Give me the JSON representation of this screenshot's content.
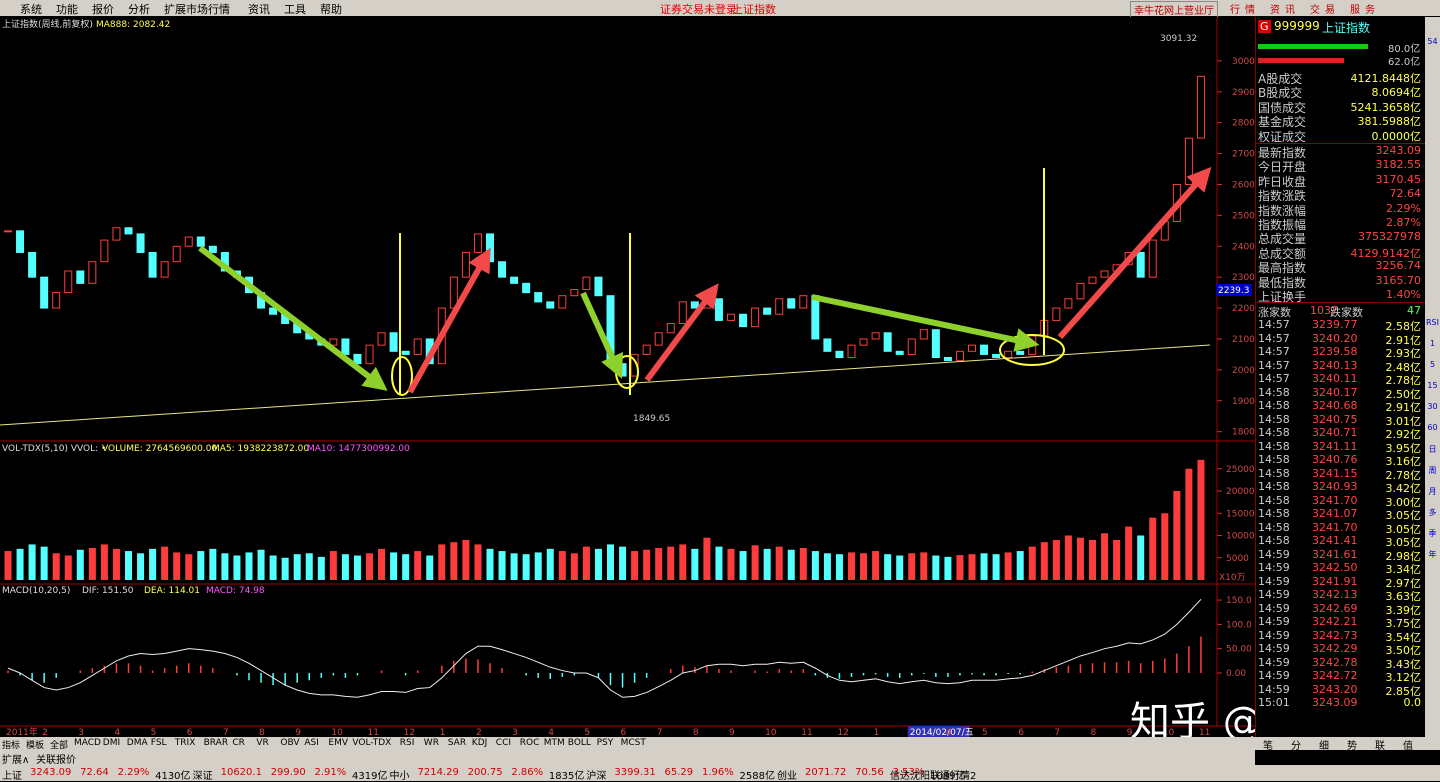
{
  "menu": [
    "系统",
    "功能",
    "报价",
    "分析",
    "扩展市场行情",
    "资讯",
    "工具",
    "帮助"
  ],
  "notice": [
    "证券交易未登录",
    "上证指数"
  ],
  "broker": "幸牛花网上营业厅",
  "top_buttons": [
    "行",
    "情",
    "资",
    "讯",
    "交",
    "易",
    "服",
    "务"
  ],
  "chart_data": [
    {
      "type": "candlestick",
      "title": "上证指数(周线,前复权)",
      "ma_label": "MA888: 2082.42",
      "high_label": "3091.32",
      "low_label": "1849.65",
      "current_label": "2239.3",
      "categories": [
        "2011年",
        null,
        null,
        "2",
        null,
        null,
        "3",
        null,
        null,
        "4",
        null,
        null,
        "5",
        null,
        null,
        "6",
        null,
        null,
        "7",
        null,
        null,
        "8",
        null,
        null,
        "9",
        null,
        null,
        "10",
        null,
        null,
        "11",
        null,
        null,
        "12",
        null,
        null,
        "1",
        null,
        null,
        "2",
        null,
        null,
        "3",
        null,
        null,
        "4",
        null,
        null,
        "5",
        null,
        null,
        "6",
        null,
        null,
        "7",
        null,
        null,
        "8",
        null,
        null,
        "9",
        null,
        null,
        "10",
        null,
        null,
        "11",
        null,
        null,
        "12",
        null,
        null,
        "1",
        null,
        null,
        "2014/02/07/五",
        null,
        null,
        "4",
        null,
        null,
        "5",
        null,
        null,
        "6",
        null,
        null,
        "7",
        null,
        null,
        "8",
        null,
        null,
        "9",
        null,
        null,
        "10",
        null,
        null,
        "11"
      ],
      "values": [
        2450,
        2380,
        2300,
        2200,
        2250,
        2320,
        2280,
        2350,
        2420,
        2460,
        2440,
        2380,
        2300,
        2350,
        2400,
        2430,
        2400,
        2380,
        2320,
        2300,
        2250,
        2200,
        2180,
        2150,
        2120,
        2100,
        2080,
        2100,
        2050,
        2020,
        2080,
        2120,
        2060,
        2050,
        2100,
        2020,
        2200,
        2300,
        2380,
        2440,
        2350,
        2300,
        2280,
        2250,
        2220,
        2200,
        2240,
        2260,
        2300,
        2240,
        2020,
        1980,
        2050,
        2080,
        2120,
        2150,
        2220,
        2200,
        2230,
        2160,
        2180,
        2140,
        2200,
        2180,
        2230,
        2200,
        2240,
        2100,
        2060,
        2040,
        2080,
        2100,
        2120,
        2060,
        2050,
        2100,
        2130,
        2040,
        2030,
        2060,
        2080,
        2050,
        2040,
        2060,
        2050,
        2110,
        2160,
        2200,
        2230,
        2280,
        2300,
        2320,
        2340,
        2380,
        2300,
        2420,
        2480,
        2600,
        2750,
        2950
      ],
      "up_color": "#ff3c3c",
      "down_color": "#54ffff",
      "ylim": [
        1773,
        3142
      ],
      "yticks": [
        1800,
        1900,
        2000,
        2100,
        2200,
        2300,
        2400,
        2500,
        2600,
        2700,
        2800,
        2900,
        3000
      ]
    },
    {
      "type": "bar",
      "title": "VOL-TDX(5,10) VVOL: •",
      "legend": [
        "VOLUME: 2764569600.00",
        "MA5: 1938223872.00",
        "MA10: 1477300992.00"
      ],
      "unit": "X10万",
      "values": [
        6500,
        7000,
        8000,
        7500,
        6000,
        5500,
        6800,
        7200,
        8000,
        7000,
        6500,
        6000,
        7000,
        7500,
        6200,
        5800,
        6500,
        7000,
        6000,
        5500,
        6200,
        6800,
        5500,
        5000,
        5800,
        6000,
        5200,
        6500,
        5800,
        5500,
        6000,
        7000,
        6200,
        5800,
        6500,
        5500,
        8000,
        8500,
        9000,
        8000,
        7000,
        6500,
        6000,
        5800,
        6200,
        7000,
        6500,
        6000,
        7500,
        7000,
        8000,
        7500,
        6500,
        6800,
        7200,
        7500,
        8000,
        7000,
        9500,
        7500,
        7000,
        6500,
        7800,
        7000,
        7500,
        6800,
        7200,
        6500,
        6000,
        5800,
        6200,
        6000,
        6500,
        5800,
        5500,
        6000,
        6200,
        5500,
        5200,
        5600,
        5800,
        6000,
        5800,
        6200,
        6500,
        7500,
        8500,
        9000,
        10000,
        9500,
        9000,
        10500,
        9000,
        12000,
        10000,
        14000,
        15000,
        20000,
        25000,
        27000
      ],
      "ylim": [
        0,
        31236
      ],
      "yticks": [
        5000,
        10000,
        15000,
        20000,
        25000
      ]
    },
    {
      "type": "macd",
      "title": "MACD(10,20,5)",
      "legend": [
        "DIF: 151.50",
        "DEA: 114.01",
        "MACD: 74.98"
      ],
      "values": [
        5,
        -5,
        -15,
        -20,
        -10,
        0,
        5,
        10,
        15,
        20,
        20,
        15,
        5,
        10,
        15,
        20,
        15,
        10,
        0,
        -5,
        -15,
        -20,
        -25,
        -25,
        -20,
        -15,
        -10,
        -5,
        -10,
        -5,
        0,
        5,
        0,
        -5,
        5,
        0,
        15,
        25,
        30,
        28,
        20,
        10,
        0,
        -5,
        -10,
        -12,
        -8,
        -5,
        0,
        -10,
        -25,
        -30,
        -20,
        -10,
        0,
        8,
        15,
        12,
        15,
        8,
        5,
        0,
        5,
        3,
        8,
        5,
        8,
        -5,
        -10,
        -12,
        -8,
        -5,
        -3,
        -8,
        -10,
        -5,
        -2,
        -8,
        -8,
        -5,
        -3,
        -5,
        -5,
        -2,
        -3,
        3,
        8,
        12,
        15,
        18,
        20,
        22,
        22,
        25,
        20,
        25,
        30,
        40,
        55,
        75
      ],
      "dif": [
        10,
        0,
        -15,
        -30,
        -35,
        -30,
        -20,
        -5,
        10,
        25,
        35,
        40,
        38,
        40,
        45,
        50,
        48,
        45,
        40,
        32,
        20,
        5,
        -10,
        -25,
        -35,
        -42,
        -45,
        -45,
        -48,
        -50,
        -45,
        -38,
        -38,
        -40,
        -32,
        -30,
        -10,
        15,
        40,
        55,
        55,
        48,
        40,
        32,
        22,
        12,
        5,
        0,
        0,
        -10,
        -35,
        -50,
        -48,
        -40,
        -28,
        -15,
        0,
        5,
        15,
        18,
        18,
        15,
        18,
        18,
        22,
        20,
        22,
        10,
        -5,
        -15,
        -18,
        -15,
        -12,
        -18,
        -22,
        -18,
        -15,
        -20,
        -22,
        -20,
        -15,
        -15,
        -15,
        -12,
        -10,
        -5,
        5,
        15,
        25,
        35,
        42,
        50,
        55,
        62,
        60,
        68,
        80,
        100,
        125,
        151.5
      ],
      "ylim": [
        -107,
        181
      ],
      "yticks": [
        {
          "value": 0,
          "label": "0.00"
        },
        {
          "value": 50,
          "label": "50.00"
        },
        {
          "value": 100,
          "label": "100.0"
        },
        {
          "value": 150,
          "label": "150.0"
        }
      ]
    }
  ],
  "quote": {
    "badge": "G",
    "code": "999999",
    "name": "上证指数",
    "bars": [
      "80.0亿",
      "62.0亿"
    ],
    "rows": [
      [
        "A股成交",
        "4121.8448亿"
      ],
      [
        "B股成交",
        "8.0694亿"
      ],
      [
        "国债成交",
        "5241.3658亿"
      ],
      [
        "基金成交",
        "381.5988亿"
      ],
      [
        "权证成交",
        "0.0000亿"
      ],
      [
        "最新指数",
        "3243.09"
      ],
      [
        "今日开盘",
        "3182.55"
      ],
      [
        "昨日收盘",
        "3170.45"
      ],
      [
        "指数涨跌",
        "72.64"
      ],
      [
        "指数涨幅",
        "2.29%"
      ],
      [
        "指数振幅",
        "2.87%"
      ],
      [
        "总成交量",
        "375327978"
      ],
      [
        "总成交额",
        "4129.9142亿"
      ],
      [
        "最高指数",
        "3256.74"
      ],
      [
        "最低指数",
        "3165.70"
      ],
      [
        "上证换手",
        "1.40%"
      ]
    ],
    "breadth": [
      "涨家数",
      "1037",
      "跌家数",
      "47"
    ]
  },
  "ticks": [
    [
      "14:57",
      "3239.77",
      "2.58亿"
    ],
    [
      "14:57",
      "3240.20",
      "2.91亿"
    ],
    [
      "14:57",
      "3239.58",
      "2.93亿"
    ],
    [
      "14:57",
      "3240.13",
      "2.48亿"
    ],
    [
      "14:57",
      "3240.11",
      "2.78亿"
    ],
    [
      "14:58",
      "3240.17",
      "2.50亿"
    ],
    [
      "14:58",
      "3240.68",
      "2.91亿"
    ],
    [
      "14:58",
      "3240.75",
      "3.01亿"
    ],
    [
      "14:58",
      "3240.71",
      "2.92亿"
    ],
    [
      "14:58",
      "3241.11",
      "3.95亿"
    ],
    [
      "14:58",
      "3240.76",
      "3.16亿"
    ],
    [
      "14:58",
      "3241.15",
      "2.78亿"
    ],
    [
      "14:58",
      "3240.93",
      "3.42亿"
    ],
    [
      "14:58",
      "3241.70",
      "3.00亿"
    ],
    [
      "14:58",
      "3241.07",
      "3.05亿"
    ],
    [
      "14:58",
      "3241.70",
      "3.05亿"
    ],
    [
      "14:58",
      "3241.41",
      "3.05亿"
    ],
    [
      "14:59",
      "3241.61",
      "2.98亿"
    ],
    [
      "14:59",
      "3242.50",
      "3.34亿"
    ],
    [
      "14:59",
      "3241.91",
      "2.97亿"
    ],
    [
      "14:59",
      "3242.13",
      "3.63亿"
    ],
    [
      "14:59",
      "3242.69",
      "3.39亿"
    ],
    [
      "14:59",
      "3242.21",
      "3.75亿"
    ],
    [
      "14:59",
      "3242.73",
      "3.54亿"
    ],
    [
      "14:59",
      "3242.29",
      "3.50亿"
    ],
    [
      "14:59",
      "3242.78",
      "3.43亿"
    ],
    [
      "14:59",
      "3242.72",
      "3.12亿"
    ],
    [
      "14:59",
      "3243.20",
      "2.85亿"
    ],
    [
      "15:01",
      "3243.09",
      "0.0"
    ]
  ],
  "side_tools": [
    "54",
    "RSI",
    "1",
    "5",
    "15",
    "30",
    "60",
    "日",
    "周",
    "月",
    "多",
    "季",
    "年"
  ],
  "quote_tabs": [
    "笔",
    "分",
    "细",
    "势",
    "联",
    "值"
  ],
  "indicator_tabs": [
    "指标",
    "模板",
    "全部",
    "MACD",
    "DMI",
    "DMA",
    "FSL",
    "TRIX",
    "BRAR",
    "CR",
    "VR",
    "OBV",
    "ASI",
    "EMV",
    "VOL-TDX",
    "RSI",
    "WR",
    "SAR",
    "KDJ",
    "CCI",
    "ROC",
    "MTM",
    "BOLL",
    "PSY",
    "MCST"
  ],
  "sub_tabs": [
    "扩展∧",
    "关联报价"
  ],
  "status": [
    "上证",
    "3243.09",
    "72.64",
    "2.29%",
    "4130亿",
    "深证",
    "10620.1",
    "299.90",
    "2.91%",
    "4319亿",
    "中小",
    "7214.29",
    "200.75",
    "2.86%",
    "1835亿",
    "沪深",
    "3399.31",
    "65.29",
    "1.96%",
    "2588亿",
    "创业",
    "2071.72",
    "70.56",
    "3.53%",
    "1089亿",
    "信达沈阳联通行情2"
  ],
  "watermark": "知乎 @张绍予"
}
